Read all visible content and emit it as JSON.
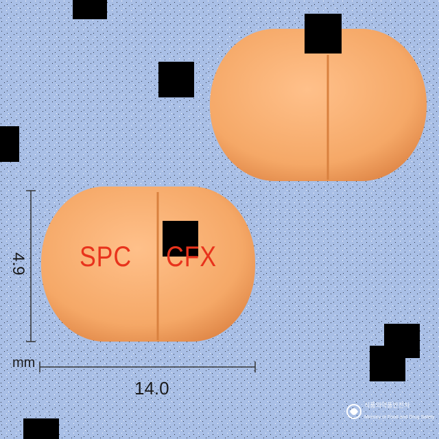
{
  "measurements": {
    "height_value": "4.9",
    "length_value": "14.0",
    "unit": "mm"
  },
  "tablet_front": {
    "imprint_left": "SPC",
    "imprint_right": "CFX"
  },
  "watermark": {
    "korean_name": "식품의약품안전처",
    "english_name": "Ministry of Food and Drug Safety"
  },
  "colors": {
    "background": "#a9bfe6",
    "tablet": "#f5a867",
    "tablet_shade": "#e58a4c",
    "imprint": "#e8331c",
    "censor_block": "#000000"
  }
}
